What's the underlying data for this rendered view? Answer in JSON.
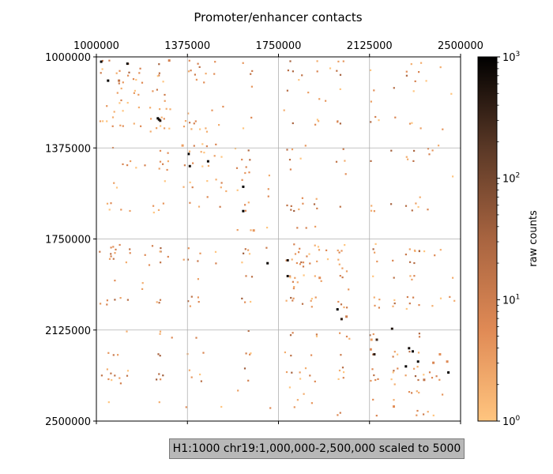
{
  "chart_data": {
    "type": "heatmap",
    "title": "Promoter/enhancer contacts",
    "xlim": [
      1000000,
      2500000
    ],
    "ylim": [
      1000000,
      2500000
    ],
    "x_ticks": [
      "1000000",
      "1375000",
      "1750000",
      "2125000",
      "2500000"
    ],
    "y_ticks": [
      "1000000",
      "1375000",
      "1750000",
      "2125000",
      "2500000"
    ],
    "x_tick_values": [
      1000000,
      1375000,
      1750000,
      2125000,
      2500000
    ],
    "y_tick_values": [
      1000000,
      1375000,
      1750000,
      2125000,
      2500000
    ],
    "grid": true,
    "colorbar": {
      "label": "raw counts",
      "scale": "log",
      "min": 1,
      "max": 1000,
      "ticks": [
        {
          "value": 1,
          "base": "10",
          "exp": "0"
        },
        {
          "value": 10,
          "base": "10",
          "exp": "1"
        },
        {
          "value": 100,
          "base": "10",
          "exp": "2"
        },
        {
          "value": 1000,
          "base": "10",
          "exp": "3"
        }
      ],
      "colors": [
        "#ffc57f",
        "#e08a55",
        "#a86440",
        "#5a3826",
        "#000000"
      ]
    },
    "cells": [
      [
        1020000,
        1020000,
        1000
      ],
      [
        1048000,
        1098000,
        900
      ],
      [
        1093000,
        1098000,
        15
      ],
      [
        1128000,
        1028000,
        800
      ],
      [
        1253000,
        1253000,
        1000
      ],
      [
        1258000,
        1258000,
        700
      ],
      [
        1263000,
        1263000,
        500
      ],
      [
        1300000,
        1015000,
        8
      ],
      [
        1355000,
        1365000,
        3
      ],
      [
        1380000,
        1400000,
        900
      ],
      [
        1385000,
        1450000,
        600
      ],
      [
        1460000,
        1430000,
        800
      ],
      [
        1605000,
        1535000,
        1000
      ],
      [
        1605000,
        1635000,
        1000
      ],
      [
        1648000,
        1715000,
        4
      ],
      [
        1705000,
        1850000,
        800
      ],
      [
        1788000,
        1838000,
        500
      ],
      [
        1788000,
        1903000,
        600
      ],
      [
        1920000,
        1910000,
        5
      ],
      [
        1993000,
        2040000,
        1000
      ],
      [
        2010000,
        2080000,
        400
      ],
      [
        2030000,
        2070000,
        10
      ],
      [
        2133000,
        2165000,
        3
      ],
      [
        2130000,
        2205000,
        6
      ],
      [
        2145000,
        2225000,
        400
      ],
      [
        2155000,
        2165000,
        300
      ],
      [
        2218000,
        2120000,
        600
      ],
      [
        2275000,
        2275000,
        900
      ],
      [
        2288000,
        2200000,
        700
      ],
      [
        2303000,
        2213000,
        800
      ],
      [
        2325000,
        2255000,
        900
      ],
      [
        2350000,
        2330000,
        15
      ],
      [
        2388000,
        2260000,
        7
      ],
      [
        2445000,
        2255000,
        6
      ],
      [
        2450000,
        2300000,
        900
      ],
      [
        2415000,
        2225000,
        5
      ],
      [
        2225000,
        2440000,
        5
      ]
    ],
    "bins": [
      1020000,
      1048000,
      1065000,
      1075000,
      1093000,
      1100000,
      1128000,
      1153000,
      1178000,
      1205000,
      1225000,
      1253000,
      1263000,
      1285000,
      1300000,
      1365000,
      1380000,
      1400000,
      1420000,
      1440000,
      1460000,
      1480000,
      1510000,
      1540000,
      1575000,
      1605000,
      1630000,
      1705000,
      1770000,
      1788000,
      1803000,
      1818000,
      1838000,
      1855000,
      1875000,
      1903000,
      1920000,
      1950000,
      1993000,
      2010000,
      2030000,
      2133000,
      2145000,
      2155000,
      2218000,
      2230000,
      2280000,
      2303000,
      2325000,
      2350000,
      2370000,
      2388000,
      2415000,
      2445000,
      2465000
    ]
  },
  "status_bar": {
    "text": "H1:1000 chr19:1,000,000-2,500,000 scaled to 5000"
  }
}
